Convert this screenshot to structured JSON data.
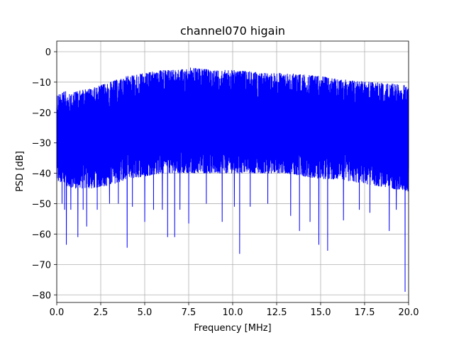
{
  "chart_data": {
    "type": "line",
    "title": "channel070 higain",
    "xlabel": "Frequency [MHz]",
    "ylabel": "PSD [dB]",
    "xlim": [
      0,
      20
    ],
    "ylim": [
      -82.5,
      3.5
    ],
    "grid": true,
    "x_ticks": [
      0,
      2.5,
      5,
      7.5,
      10,
      12.5,
      15,
      17.5,
      20
    ],
    "x_tick_labels": [
      "0.0",
      "2.5",
      "5.0",
      "7.5",
      "10.0",
      "12.5",
      "15.0",
      "17.5",
      "20.0"
    ],
    "y_ticks": [
      0,
      -10,
      -20,
      -30,
      -40,
      -50,
      -60,
      -70,
      -80
    ],
    "y_tick_labels": [
      "0",
      "−10",
      "−20",
      "−30",
      "−40",
      "−50",
      "−60",
      "−70",
      "−80"
    ],
    "series": [
      {
        "color": "#0000ff",
        "envelope_x": [
          0.0,
          0.5,
          1.0,
          2.0,
          3.0,
          4.0,
          5.0,
          6.0,
          7.0,
          7.5,
          8.0,
          9.0,
          10.0,
          11.0,
          12.0,
          13.0,
          14.0,
          15.0,
          16.0,
          17.0,
          18.0,
          19.0,
          20.0
        ],
        "envelope_upper": [
          -14,
          -13,
          -13,
          -12,
          -10,
          -8,
          -7,
          -6,
          -6,
          -5,
          -5.5,
          -6,
          -6,
          -6.5,
          -7,
          -7,
          -7.5,
          -8,
          -9,
          -9.5,
          -10,
          -10.5,
          -11
        ],
        "envelope_lower": [
          -43,
          -44,
          -45,
          -45,
          -44,
          -42,
          -41,
          -40,
          -40,
          -40,
          -40,
          -40,
          -40,
          -40,
          -40,
          -40,
          -41,
          -42,
          -42,
          -43,
          -44,
          -45,
          -46
        ],
        "dips": [
          [
            0.3,
            -50
          ],
          [
            0.45,
            -52
          ],
          [
            0.55,
            -63.5
          ],
          [
            0.8,
            -52
          ],
          [
            1.2,
            -61
          ],
          [
            1.5,
            -52
          ],
          [
            1.7,
            -57.5
          ],
          [
            2.3,
            -52
          ],
          [
            3.0,
            -50
          ],
          [
            3.5,
            -50
          ],
          [
            4.0,
            -64.5
          ],
          [
            4.3,
            -51
          ],
          [
            5.0,
            -56
          ],
          [
            5.5,
            -52
          ],
          [
            6.0,
            -52
          ],
          [
            6.3,
            -61
          ],
          [
            6.7,
            -61
          ],
          [
            7.0,
            -52
          ],
          [
            7.5,
            -56.5
          ],
          [
            8.5,
            -50
          ],
          [
            9.4,
            -56
          ],
          [
            10.1,
            -51
          ],
          [
            10.4,
            -66.5
          ],
          [
            11.0,
            -51
          ],
          [
            12.0,
            -50
          ],
          [
            13.3,
            -54
          ],
          [
            13.8,
            -59
          ],
          [
            14.4,
            -56
          ],
          [
            14.9,
            -63.5
          ],
          [
            15.4,
            -65.5
          ],
          [
            16.3,
            -55.5
          ],
          [
            17.2,
            -52
          ],
          [
            17.8,
            -53
          ],
          [
            18.9,
            -59
          ],
          [
            19.3,
            -52
          ],
          [
            19.8,
            -79
          ]
        ]
      }
    ]
  }
}
